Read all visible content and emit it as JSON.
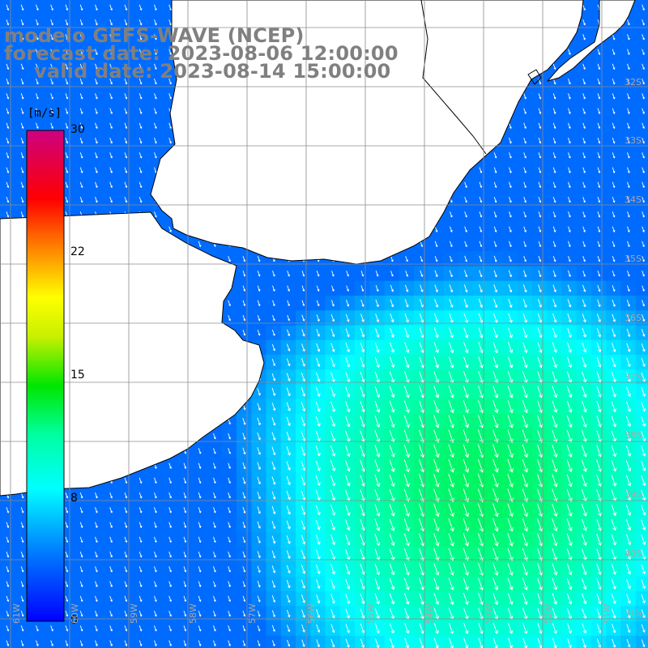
{
  "title": {
    "model": "modelo GEFS-WAVE (NCEP)",
    "forecast": "forecast date: 2023-08-06 12:00:00",
    "valid": "valid date: 2023-08-14 15:00:00"
  },
  "colorbar": {
    "unit": "[m/s]",
    "min": 0,
    "max": 30,
    "ticks": [
      "30",
      "22",
      "15",
      "8",
      "0"
    ]
  },
  "lat_labels": [
    "32S",
    "33S",
    "34S",
    "35S",
    "36S",
    "37S",
    "38S",
    "39S",
    "40S",
    "41S"
  ],
  "lon_labels": [
    "61W",
    "60W",
    "59W",
    "58W",
    "57W",
    "56W",
    "55W",
    "54W",
    "53W",
    "52W",
    "51W"
  ],
  "colors": {
    "land": "#ffffff",
    "grid": "#8c8c8c",
    "coast": "#000000",
    "arrow": "#ffffff",
    "title": "#808080",
    "label": "#a8a8a8"
  },
  "chart_data": {
    "type": "heatmap",
    "variable": "wind speed",
    "unit": "m/s",
    "lat_range": [
      "32S",
      "41S"
    ],
    "lon_range": [
      "61W",
      "51W"
    ],
    "scale": [
      0,
      8,
      15,
      22,
      30
    ],
    "field_summary": {
      "max_region": "38S-40S, 55W-53W",
      "max_approx_ms": 12,
      "coastal_min_approx_ms": 5,
      "direction": "from NNW to SSE"
    }
  }
}
